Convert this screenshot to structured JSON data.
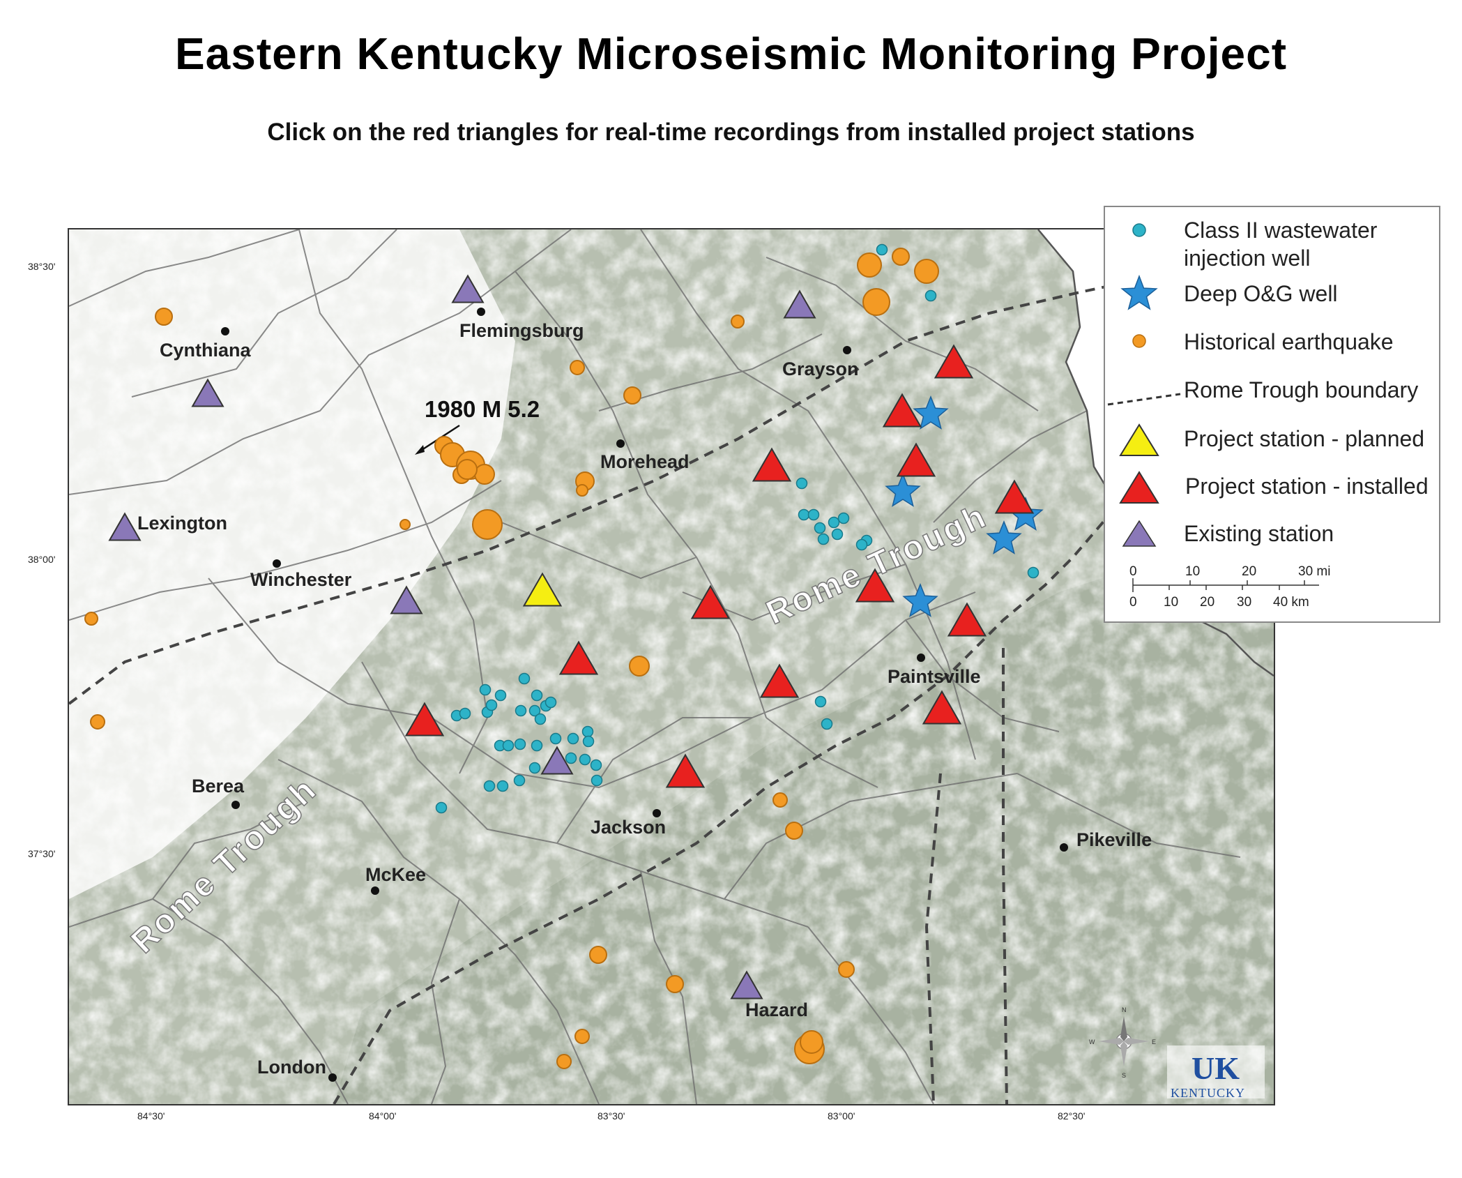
{
  "title": "Eastern Kentucky Microseismic Monitoring Project",
  "subtitle": "Click on the red triangles for real-time recordings from installed project stations",
  "map": {
    "annotation": "1980 M 5.2",
    "rome_trough_label": "Rome Trough",
    "cities": [
      {
        "name": "Flemingsburg"
      },
      {
        "name": "Cynthiana"
      },
      {
        "name": "Grayson"
      },
      {
        "name": "Morehead"
      },
      {
        "name": "Lexington"
      },
      {
        "name": "Winchester"
      },
      {
        "name": "Paintsville"
      },
      {
        "name": "Berea"
      },
      {
        "name": "Jackson"
      },
      {
        "name": "Pikeville"
      },
      {
        "name": "McKee"
      },
      {
        "name": "Hazard"
      },
      {
        "name": "London"
      }
    ],
    "lat_labels": [
      "38°30'",
      "38°00'",
      "37°30'"
    ],
    "lon_labels": [
      "84°30'",
      "84°00'",
      "83°30'",
      "83°00'",
      "82°30'"
    ],
    "compass": {
      "n": "N",
      "s": "S",
      "e": "E",
      "w": "W"
    },
    "logo": {
      "text": "UK",
      "sub": "KENTUCKY"
    }
  },
  "legend": {
    "items": [
      {
        "label": "Class II wastewater",
        "label2": "injection well",
        "icon": "cyan-dot-icon"
      },
      {
        "label": "Deep O&G well",
        "icon": "blue-star-icon"
      },
      {
        "label": "Historical earthquake",
        "icon": "orange-dot-icon"
      },
      {
        "label": "Rome Trough boundary",
        "icon": "dashed-line-icon"
      },
      {
        "label": "Project station - planned",
        "icon": "yellow-triangle-icon"
      },
      {
        "label": "Project station - installed",
        "icon": "red-triangle-icon"
      },
      {
        "label": "Existing station",
        "icon": "purple-triangle-icon"
      }
    ],
    "scale": {
      "mi_ticks": [
        "0",
        "10",
        "20",
        "30 mi"
      ],
      "km_ticks": [
        "0",
        "10",
        "20",
        "30",
        "40 km"
      ]
    }
  },
  "colors": {
    "installed_station": "#e8211f",
    "planned_station": "#f5ee12",
    "existing_station": "#8a78b8",
    "injection_well": "#2db3c8",
    "deep_well": "#2b8fd6",
    "earthquake": "#f39a24"
  }
}
